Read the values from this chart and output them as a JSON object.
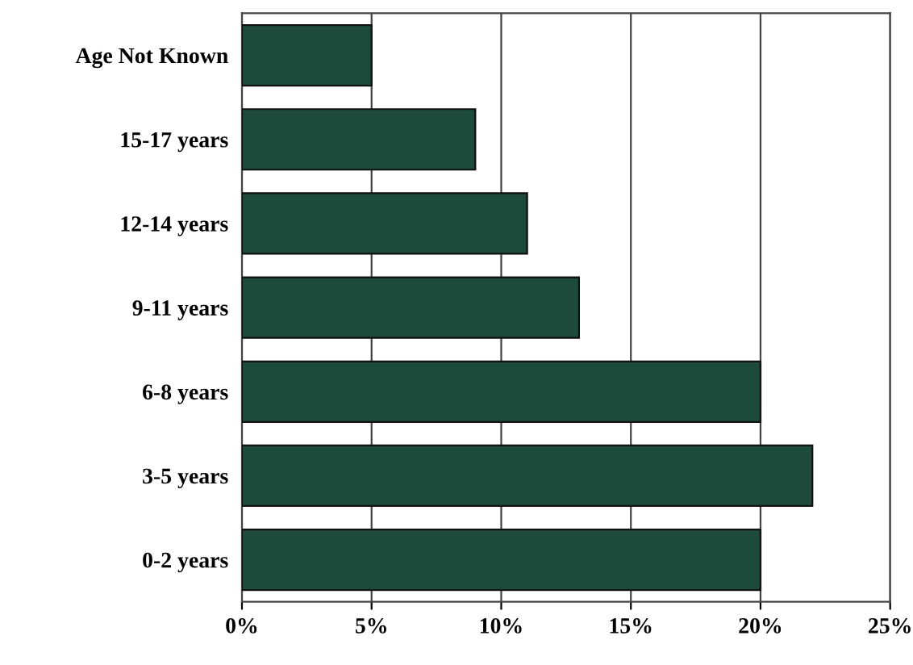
{
  "chart_data": {
    "type": "bar",
    "orientation": "horizontal",
    "categories": [
      "Age Not Known",
      "15-17 years",
      "12-14 years",
      "9-11 years",
      "6-8 years",
      "3-5 years",
      "0-2 years"
    ],
    "values": [
      5,
      9,
      11,
      13,
      20,
      22,
      20
    ],
    "color": "#1c4a3b",
    "xlim": [
      0,
      25
    ],
    "xticks": [
      {
        "value": 0,
        "label": "0%"
      },
      {
        "value": 5,
        "label": "5%"
      },
      {
        "value": 10,
        "label": "10%"
      },
      {
        "value": 15,
        "label": "15%"
      },
      {
        "value": 20,
        "label": "20%"
      },
      {
        "value": 25,
        "label": "25%"
      }
    ],
    "grid": "x",
    "legend": false
  }
}
